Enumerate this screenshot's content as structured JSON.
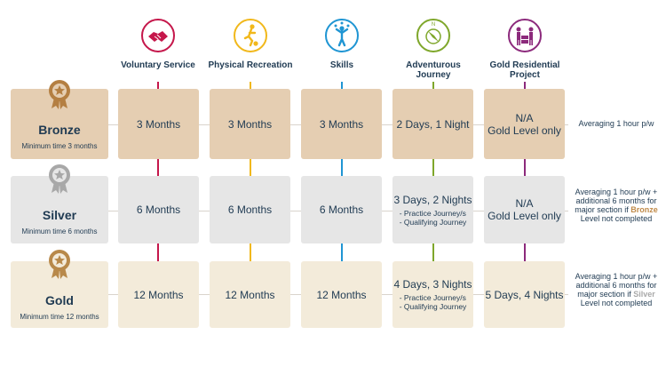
{
  "columns": [
    {
      "title": "Voluntary Service",
      "icon": "handshake-icon",
      "color": "#c5174b"
    },
    {
      "title": "Physical Recreation",
      "icon": "football-player-icon",
      "color": "#f1b81b"
    },
    {
      "title": "Skills",
      "icon": "juggler-icon",
      "color": "#1f95d3"
    },
    {
      "title": "Adventurous Journey",
      "icon": "compass-icon",
      "color": "#7fa72b"
    },
    {
      "title": "Gold Residential Project",
      "icon": "group-people-icon",
      "color": "#8c2a7c"
    }
  ],
  "levels": {
    "bronze": {
      "name": "Bronze",
      "min_time": "Minimum time 3 months",
      "cells": [
        "3 Months",
        "3 Months",
        "3 Months",
        "2 Days, 1 Night",
        "N/A"
      ],
      "residential_sub": "Gold Level only",
      "note": "Averaging 1 hour p/w",
      "color": "#c08a48"
    },
    "silver": {
      "name": "Silver",
      "min_time": "Minimum time 6 months",
      "cells": [
        "6 Months",
        "6 Months",
        "6 Months",
        "3 Days, 2 Nights",
        "N/A"
      ],
      "journey_sub": [
        "- Practice Journey/s",
        "- Qualifying Journey"
      ],
      "residential_sub": "Gold Level only",
      "note_pre": "Averaging 1 hour p/w + additional 6 months for major section if",
      "note_highlight": "Bronze",
      "note_post": "Level not completed",
      "color": "#a9a9a9"
    },
    "gold": {
      "name": "Gold",
      "min_time": "Minimum time 12 months",
      "cells": [
        "12 Months",
        "12 Months",
        "12 Months",
        "4 Days, 3 Nights",
        "5 Days, 4 Nights"
      ],
      "journey_sub": [
        "- Practice Journey/s",
        "- Qualifying Journey"
      ],
      "note_pre": "Averaging 1 hour p/w + additional 6 months for major section if",
      "note_highlight": "Silver",
      "note_post": "Level not completed",
      "color": "#b8894a"
    }
  }
}
